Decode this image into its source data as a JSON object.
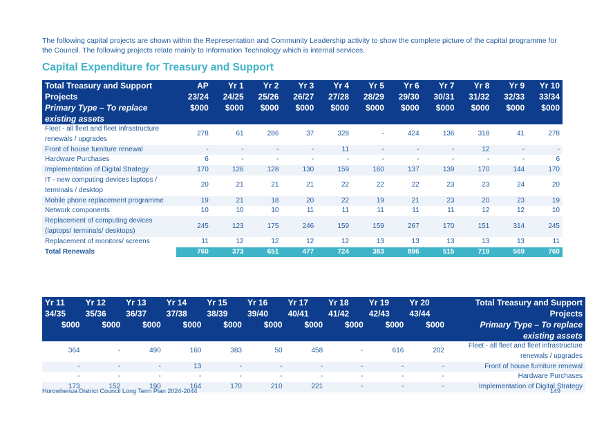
{
  "intro": "The following capital projects are shown within the Representation and Community Leadership activity to show the complete picture of the capital programme for the Council. The following projects relate mainly to Information Technology which is internal services.",
  "heading": "Capital Expenditure for Treasury and Support",
  "table1": {
    "label_header": {
      "title": "Total Treasury and Support Projects",
      "subtitle": "Primary Type – To replace existing assets"
    },
    "columns": [
      {
        "period": "AP",
        "years": "23/24",
        "unit": "$000"
      },
      {
        "period": "Yr 1",
        "years": "24/25",
        "unit": "$000"
      },
      {
        "period": "Yr 2",
        "years": "25/26",
        "unit": "$000"
      },
      {
        "period": "Yr 3",
        "years": "26/27",
        "unit": "$000"
      },
      {
        "period": "Yr 4",
        "years": "27/28",
        "unit": "$000"
      },
      {
        "period": "Yr 5",
        "years": "28/29",
        "unit": "$000"
      },
      {
        "period": "Yr 6",
        "years": "29/30",
        "unit": "$000"
      },
      {
        "period": "Yr 7",
        "years": "30/31",
        "unit": "$000"
      },
      {
        "period": "Yr 8",
        "years": "31/32",
        "unit": "$000"
      },
      {
        "period": "Yr 9",
        "years": "32/33",
        "unit": "$000"
      },
      {
        "period": "Yr 10",
        "years": "33/34",
        "unit": "$000"
      }
    ],
    "rows": [
      {
        "label": "Fleet - all fleet and fleet infrastructure renewals / upgrades",
        "values": [
          "278",
          "61",
          "286",
          "37",
          "328",
          "-",
          "424",
          "136",
          "318",
          "41",
          "278"
        ]
      },
      {
        "label": "Front of house furniture renewal",
        "values": [
          "-",
          "-",
          "-",
          "-",
          "11",
          "-",
          "-",
          "-",
          "12",
          "-",
          "-"
        ]
      },
      {
        "label": "Hardware Purchases",
        "values": [
          "6",
          "-",
          "-",
          "-",
          "-",
          "-",
          "-",
          "-",
          "-",
          "-",
          "6"
        ]
      },
      {
        "label": "Implementation of Digital Strategy",
        "values": [
          "170",
          "126",
          "128",
          "130",
          "159",
          "160",
          "137",
          "139",
          "170",
          "144",
          "170"
        ]
      },
      {
        "label": "IT - new computing devices laptops / terminals / desktop",
        "values": [
          "20",
          "21",
          "21",
          "21",
          "22",
          "22",
          "22",
          "23",
          "23",
          "24",
          "20"
        ]
      },
      {
        "label": "Mobile phone replacement programme",
        "values": [
          "19",
          "21",
          "18",
          "20",
          "22",
          "19",
          "21",
          "23",
          "20",
          "23",
          "19"
        ]
      },
      {
        "label": "Network components",
        "values": [
          "10",
          "10",
          "10",
          "11",
          "11",
          "11",
          "11",
          "11",
          "12",
          "12",
          "10"
        ]
      },
      {
        "label": "Replacement of computing devices (laptops/ terminals/ desktops)",
        "values": [
          "245",
          "123",
          "175",
          "246",
          "159",
          "159",
          "267",
          "170",
          "151",
          "314",
          "245"
        ]
      },
      {
        "label": "Replacement of monitors/ screens",
        "values": [
          "11",
          "12",
          "12",
          "12",
          "12",
          "13",
          "13",
          "13",
          "13",
          "13",
          "11"
        ]
      }
    ],
    "total": {
      "label": "Total Renewals",
      "values": [
        "760",
        "373",
        "651",
        "477",
        "724",
        "383",
        "896",
        "515",
        "719",
        "569",
        "760"
      ]
    }
  },
  "table2": {
    "label_header": {
      "title": "Total Treasury and Support Projects",
      "subtitle": "Primary Type – To replace existing assets"
    },
    "columns": [
      {
        "period": "Yr 11",
        "years": "34/35",
        "unit": "$000"
      },
      {
        "period": "Yr 12",
        "years": "35/36",
        "unit": "$000"
      },
      {
        "period": "Yr 13",
        "years": "36/37",
        "unit": "$000"
      },
      {
        "period": "Yr 14",
        "years": "37/38",
        "unit": "$000"
      },
      {
        "period": "Yr 15",
        "years": "38/39",
        "unit": "$000"
      },
      {
        "period": "Yr 16",
        "years": "39/40",
        "unit": "$000"
      },
      {
        "period": "Yr 17",
        "years": "40/41",
        "unit": "$000"
      },
      {
        "period": "Yr 18",
        "years": "41/42",
        "unit": "$000"
      },
      {
        "period": "Yr 19",
        "years": "42/43",
        "unit": "$000"
      },
      {
        "period": "Yr 20",
        "years": "43/44",
        "unit": "$000"
      }
    ],
    "rows": [
      {
        "label": "Fleet - all fleet and fleet infrastructure renewals / upgrades",
        "values": [
          "364",
          "-",
          "490",
          "160",
          "383",
          "50",
          "458",
          "-",
          "616",
          "202"
        ]
      },
      {
        "label": "Front of house furniture renewal",
        "values": [
          "-",
          "-",
          "-",
          "13",
          "-",
          "-",
          "-",
          "-",
          "-",
          "-"
        ]
      },
      {
        "label": "Hardware Purchases",
        "values": [
          "-",
          "-",
          "-",
          "-",
          "-",
          "-",
          "-",
          "-",
          "-",
          "-"
        ]
      },
      {
        "label": "Implementation of Digital Strategy",
        "values": [
          "173",
          "152",
          "190",
          "164",
          "170",
          "210",
          "221",
          "-",
          "-",
          "-"
        ]
      }
    ]
  },
  "footer": {
    "left": "Horowhenua District Council Long Term Plan 2024-2044",
    "page": "149"
  }
}
